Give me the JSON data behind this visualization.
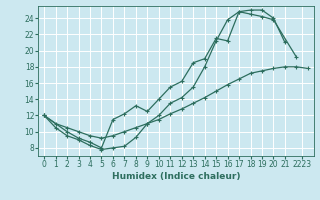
{
  "bg_color": "#cce8f0",
  "grid_color": "#ffffff",
  "line_color": "#2d6e5e",
  "xlim": [
    -0.5,
    23.5
  ],
  "ylim": [
    7.0,
    25.5
  ],
  "xtick_labels": [
    "0",
    "1",
    "2",
    "3",
    "4",
    "5",
    "6",
    "7",
    "8",
    "9",
    "10",
    "11",
    "12",
    "13",
    "14",
    "15",
    "16",
    "17",
    "18",
    "19",
    "20",
    "21",
    "2223"
  ],
  "xtick_positions": [
    0,
    1,
    2,
    3,
    4,
    5,
    6,
    7,
    8,
    9,
    10,
    11,
    12,
    13,
    14,
    15,
    16,
    17,
    18,
    19,
    20,
    21,
    22.5
  ],
  "ytick_positions": [
    8,
    10,
    12,
    14,
    16,
    18,
    20,
    22,
    24
  ],
  "ytick_labels": [
    "8",
    "10",
    "12",
    "14",
    "16",
    "18",
    "20",
    "22",
    "24"
  ],
  "xlabel": "Humidex (Indice chaleur)",
  "xlabel_fontsize": 6.5,
  "tick_fontsize": 5.5,
  "line_lw": 0.9,
  "marker_size": 2.5,
  "line_a_x": [
    0,
    1,
    2,
    3,
    4,
    5,
    6,
    7,
    8,
    9,
    10,
    11,
    12,
    13,
    14,
    15,
    16,
    17,
    18,
    19,
    20,
    21
  ],
  "line_a_y": [
    12,
    10.5,
    9.5,
    9.0,
    8.3,
    7.8,
    8.0,
    8.2,
    9.3,
    11.0,
    12.0,
    13.5,
    14.2,
    15.5,
    18.0,
    21.2,
    23.8,
    24.8,
    25.0,
    25.0,
    24.0,
    21.0
  ],
  "line_b_x": [
    0,
    1,
    2,
    3,
    4,
    5,
    6,
    7,
    8,
    9,
    10,
    11,
    12,
    13,
    14,
    15,
    16,
    17,
    18,
    19,
    20,
    21,
    22,
    23
  ],
  "line_b_y": [
    12,
    11.0,
    10.5,
    10.0,
    9.5,
    9.2,
    9.5,
    10.0,
    10.5,
    11.0,
    11.5,
    12.2,
    12.8,
    13.5,
    14.2,
    15.0,
    15.8,
    16.5,
    17.2,
    17.5,
    17.8,
    18.0,
    18.0,
    17.8
  ],
  "line_c_x": [
    0,
    2,
    3,
    4,
    5,
    6,
    7,
    8,
    9,
    10,
    11,
    12,
    13,
    14,
    15,
    16,
    17,
    18,
    19,
    20,
    22
  ],
  "line_c_y": [
    12,
    10.0,
    9.2,
    8.7,
    8.0,
    11.5,
    12.2,
    13.2,
    12.5,
    14.0,
    15.5,
    16.2,
    18.5,
    19.0,
    21.5,
    21.2,
    24.8,
    24.5,
    24.2,
    23.8,
    19.2
  ]
}
